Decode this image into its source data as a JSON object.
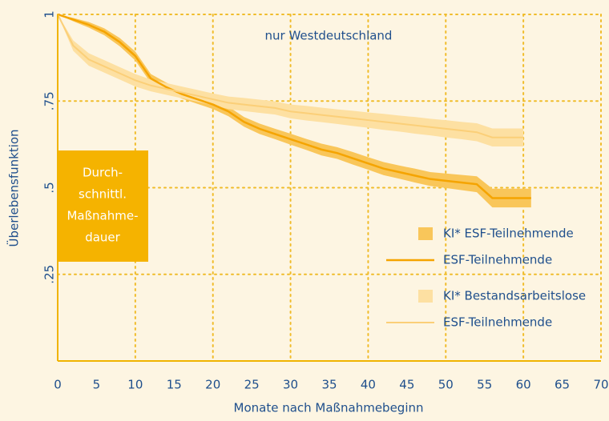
{
  "chart_data": {
    "type": "line",
    "annotations": [
      "nur Westdeutschland"
    ],
    "box_label": [
      "Durch-",
      "schnittl.",
      "Maßnahme-",
      "dauer"
    ],
    "xlabel": "Monate nach Maßnahmebeginn",
    "ylabel": "Überlebensfunktion",
    "xlim": [
      0,
      70
    ],
    "ylim": [
      0,
      1
    ],
    "xticks": [
      0,
      5,
      10,
      15,
      20,
      25,
      30,
      35,
      40,
      45,
      50,
      55,
      60,
      65,
      70
    ],
    "yticks": [
      {
        "value": 0.25,
        "label": ".25"
      },
      {
        "value": 0.5,
        "label": ".5"
      },
      {
        "value": 0.75,
        "label": ".75"
      },
      1
    ],
    "grid": true,
    "legend": "right",
    "x": [
      0,
      2,
      4,
      6,
      8,
      10,
      12,
      14,
      16,
      18,
      20,
      22,
      24,
      26,
      28,
      30,
      32,
      34,
      36,
      38,
      40,
      42,
      44,
      46,
      48,
      50,
      52,
      54,
      56,
      58,
      60,
      61
    ],
    "series": [
      {
        "name": "ESF-Teilnehmende",
        "band_name": "KI* ESF-Teilnehmende",
        "color": "#f5a400",
        "band_color": "#f9c65a",
        "values": [
          1,
          0.985,
          0.97,
          0.95,
          0.92,
          0.88,
          0.815,
          0.79,
          0.77,
          0.755,
          0.74,
          0.72,
          0.69,
          0.67,
          0.655,
          0.64,
          0.625,
          0.61,
          0.6,
          0.585,
          0.57,
          0.555,
          0.545,
          0.535,
          0.525,
          0.52,
          0.515,
          0.51,
          0.47,
          0.47,
          0.47,
          0.47
        ],
        "lower": [
          1,
          0.98,
          0.962,
          0.94,
          0.908,
          0.867,
          0.802,
          0.777,
          0.757,
          0.742,
          0.727,
          0.706,
          0.676,
          0.655,
          0.64,
          0.624,
          0.609,
          0.593,
          0.583,
          0.567,
          0.552,
          0.536,
          0.526,
          0.515,
          0.505,
          0.499,
          0.493,
          0.487,
          0.443,
          0.443,
          0.443,
          0.443
        ],
        "upper": [
          1,
          0.99,
          0.978,
          0.96,
          0.932,
          0.893,
          0.828,
          0.803,
          0.783,
          0.768,
          0.753,
          0.734,
          0.704,
          0.685,
          0.67,
          0.656,
          0.641,
          0.627,
          0.617,
          0.603,
          0.588,
          0.574,
          0.564,
          0.555,
          0.545,
          0.541,
          0.537,
          0.533,
          0.497,
          0.497,
          0.497,
          0.497
        ]
      },
      {
        "name": "ESF-Teilnehmende",
        "band_name": "KI* Bestandsarbeitslose",
        "color": "#fbcf78",
        "band_color": "#fde0a2",
        "values": [
          1,
          0.91,
          0.87,
          0.85,
          0.83,
          0.81,
          0.795,
          0.785,
          0.775,
          0.765,
          0.755,
          0.745,
          0.74,
          0.735,
          0.73,
          0.72,
          0.715,
          0.71,
          0.705,
          0.7,
          0.695,
          0.69,
          0.685,
          0.68,
          0.675,
          0.67,
          0.665,
          0.66,
          0.645,
          0.645,
          0.645,
          null
        ],
        "lower": [
          1,
          0.895,
          0.852,
          0.832,
          0.812,
          0.792,
          0.778,
          0.768,
          0.758,
          0.748,
          0.738,
          0.727,
          0.721,
          0.716,
          0.711,
          0.7,
          0.694,
          0.689,
          0.684,
          0.678,
          0.673,
          0.667,
          0.662,
          0.656,
          0.651,
          0.645,
          0.64,
          0.634,
          0.619,
          0.619,
          0.619,
          null
        ],
        "upper": [
          1,
          0.925,
          0.888,
          0.868,
          0.848,
          0.828,
          0.812,
          0.802,
          0.792,
          0.782,
          0.772,
          0.763,
          0.759,
          0.754,
          0.749,
          0.74,
          0.736,
          0.731,
          0.726,
          0.722,
          0.717,
          0.713,
          0.708,
          0.704,
          0.699,
          0.695,
          0.69,
          0.686,
          0.671,
          0.671,
          0.671,
          null
        ]
      }
    ]
  }
}
